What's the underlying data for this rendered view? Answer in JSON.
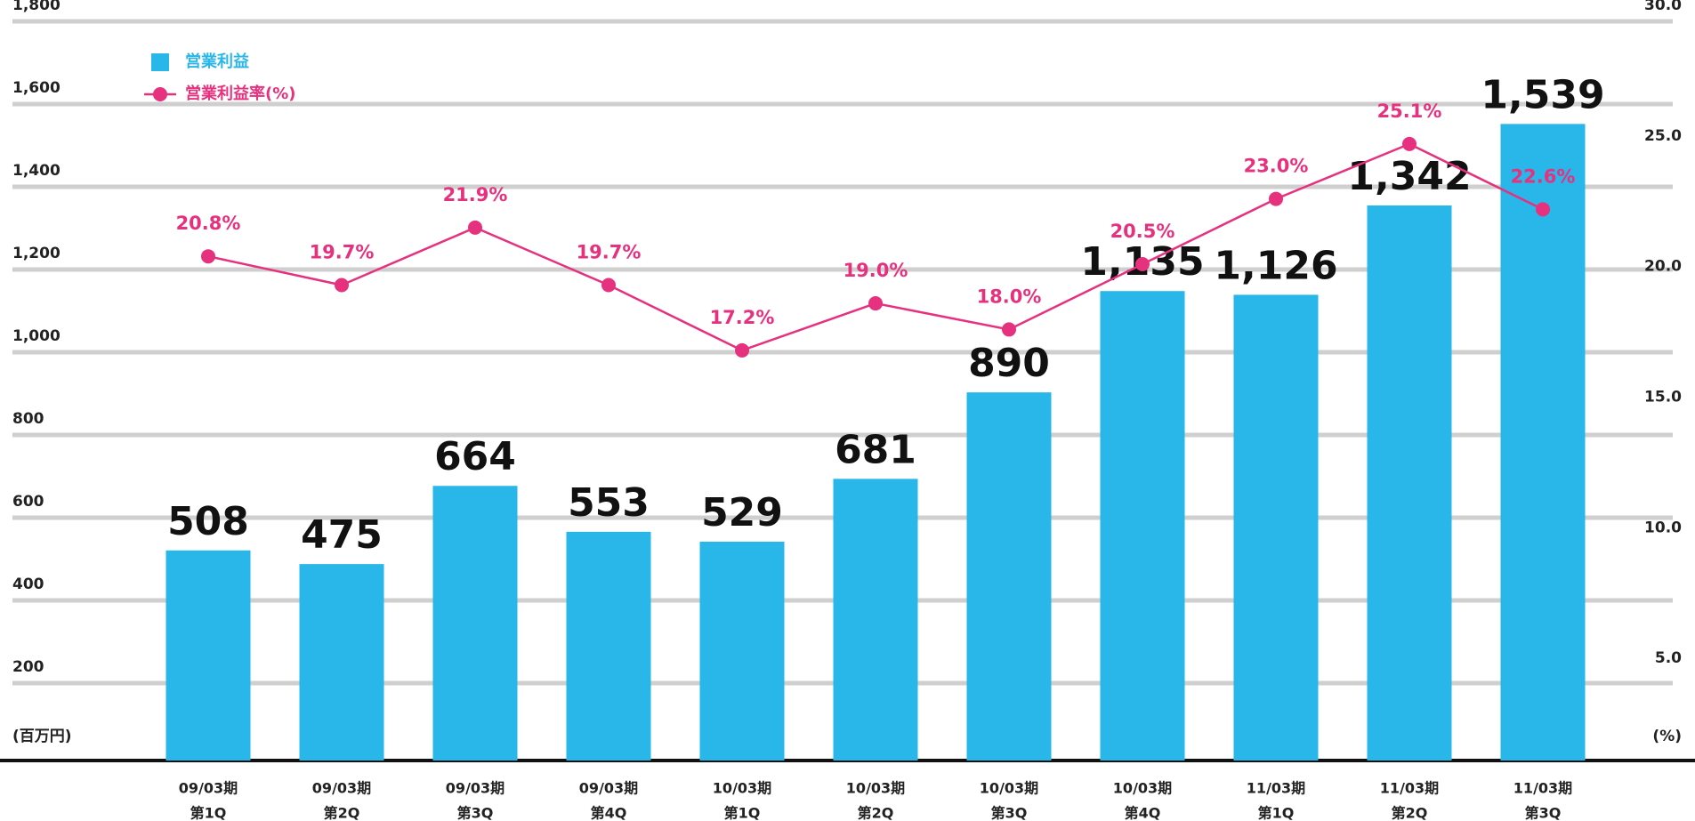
{
  "chart_data": {
    "type": "bar-line",
    "categories": [
      [
        "09/03期",
        "第1Q"
      ],
      [
        "09/03期",
        "第2Q"
      ],
      [
        "09/03期",
        "第3Q"
      ],
      [
        "09/03期",
        "第4Q"
      ],
      [
        "10/03期",
        "第1Q"
      ],
      [
        "10/03期",
        "第2Q"
      ],
      [
        "10/03期",
        "第3Q"
      ],
      [
        "10/03期",
        "第4Q"
      ],
      [
        "11/03期",
        "第1Q"
      ],
      [
        "11/03期",
        "第2Q"
      ],
      [
        "11/03期",
        "第3Q"
      ]
    ],
    "series": [
      {
        "name": "営業利益",
        "type": "bar",
        "color": "#29b6e8",
        "values": [
          508,
          475,
          664,
          553,
          529,
          681,
          890,
          1135,
          1126,
          1342,
          1539
        ],
        "value_labels": [
          "508",
          "475",
          "664",
          "553",
          "529",
          "681",
          "890",
          "1,135",
          "1,126",
          "1,342",
          "1,539"
        ]
      },
      {
        "name": "営業利益率(%)",
        "type": "line",
        "axis": "y2",
        "color": "#e6317f",
        "values": [
          20.8,
          19.7,
          21.9,
          19.7,
          17.2,
          19.0,
          18.0,
          20.5,
          23.0,
          25.1,
          22.6
        ],
        "value_labels": [
          "20.8%",
          "19.7%",
          "21.9%",
          "19.7%",
          "17.2%",
          "19.0%",
          "18.0%",
          "20.5%",
          "23.0%",
          "25.1%",
          "22.6%"
        ]
      }
    ],
    "y_label": "(百万円)",
    "y2_label": "(%)",
    "ylim": [
      0,
      1800
    ],
    "yticks": [
      200,
      400,
      600,
      800,
      {
        "value": 1000,
        "label": "1,000"
      },
      {
        "value": 1200,
        "label": "1,200"
      },
      {
        "value": 1400,
        "label": "1,400"
      },
      {
        "value": 1600,
        "label": "1,600"
      },
      {
        "value": 1800,
        "label": "1,800"
      }
    ],
    "y2lim": [
      1.5,
      30
    ],
    "y2ticks": [
      {
        "value": 5,
        "label": "5.0"
      },
      {
        "value": 10,
        "label": "10.0"
      },
      {
        "value": 15,
        "label": "15.0"
      },
      {
        "value": 20,
        "label": "20.0"
      },
      {
        "value": 25,
        "label": "25.0"
      },
      {
        "value": 30,
        "label": "30.0"
      }
    ],
    "grid": true,
    "legend": "upper left"
  }
}
